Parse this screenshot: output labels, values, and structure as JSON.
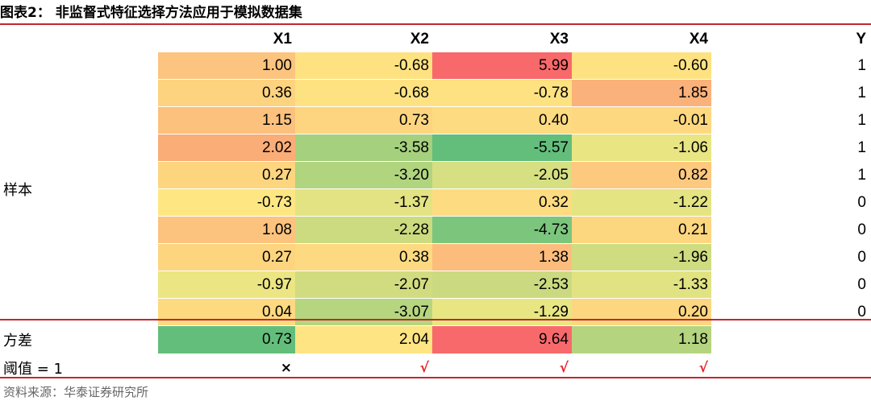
{
  "title": "图表2：   非监督式特征选择方法应用于模拟数据集",
  "headers": [
    "X1",
    "X2",
    "X3",
    "X4",
    "Y"
  ],
  "sample_label": "样本",
  "rows": [
    {
      "x1": "1.00",
      "x2": "-0.68",
      "x3": "5.99",
      "x4": "-0.60",
      "y": "1",
      "c": [
        "#fcc47e",
        "#fee282",
        "#f8696b",
        "#fee282"
      ]
    },
    {
      "x1": "0.36",
      "x2": "-0.68",
      "x3": "-0.78",
      "x4": "1.85",
      "y": "1",
      "c": [
        "#fdd37f",
        "#fee282",
        "#fee282",
        "#fbb27a"
      ]
    },
    {
      "x1": "1.15",
      "x2": "0.73",
      "x3": "0.40",
      "x4": "-0.01",
      "y": "1",
      "c": [
        "#fcc17d",
        "#fdd580",
        "#fddb81",
        "#fed880"
      ]
    },
    {
      "x1": "2.02",
      "x2": "-3.58",
      "x3": "-5.57",
      "x4": "-1.06",
      "y": "1",
      "c": [
        "#fbad78",
        "#a5d07d",
        "#63be7b",
        "#e9e583"
      ]
    },
    {
      "x1": "0.27",
      "x2": "-3.20",
      "x3": "-2.05",
      "x4": "0.82",
      "y": "1",
      "c": [
        "#fdd57f",
        "#b1d47f",
        "#d6df81",
        "#fdc97e"
      ]
    },
    {
      "x1": "-0.73",
      "x2": "-1.37",
      "x3": "0.32",
      "x4": "-1.22",
      "y": "0",
      "c": [
        "#fee783",
        "#e4e383",
        "#fddc81",
        "#e4e483"
      ]
    },
    {
      "x1": "1.08",
      "x2": "-2.28",
      "x3": "-4.73",
      "x4": "0.21",
      "y": "0",
      "c": [
        "#fcc37e",
        "#ccdb80",
        "#7bc67c",
        "#fdd680"
      ]
    },
    {
      "x1": "0.27",
      "x2": "0.38",
      "x3": "1.38",
      "x4": "-1.96",
      "y": "0",
      "c": [
        "#fdd57f",
        "#fdda81",
        "#fcbd7c",
        "#cfdc80"
      ]
    },
    {
      "x1": "-0.97",
      "x2": "-2.07",
      "x3": "-2.53",
      "x4": "-1.33",
      "y": "0",
      "c": [
        "#ebe583",
        "#d1dc80",
        "#cbda80",
        "#e1e383"
      ]
    },
    {
      "x1": "0.04",
      "x2": "-3.07",
      "x3": "-1.29",
      "x4": "0.20",
      "y": "0",
      "c": [
        "#fdd980",
        "#b6d57f",
        "#e8e683",
        "#fdd680"
      ]
    }
  ],
  "variance_label": "方差",
  "variance": {
    "x1": "0.73",
    "x2": "2.04",
    "x3": "9.64",
    "x4": "1.18",
    "c": [
      "#63be7b",
      "#fee482",
      "#f8696b",
      "#b5d47f"
    ]
  },
  "threshold_label": "阈值  = 1",
  "threshold": {
    "x1": "×",
    "x2": "√",
    "x3": "√",
    "x4": "√"
  },
  "source": "资料来源：华泰证券研究所"
}
